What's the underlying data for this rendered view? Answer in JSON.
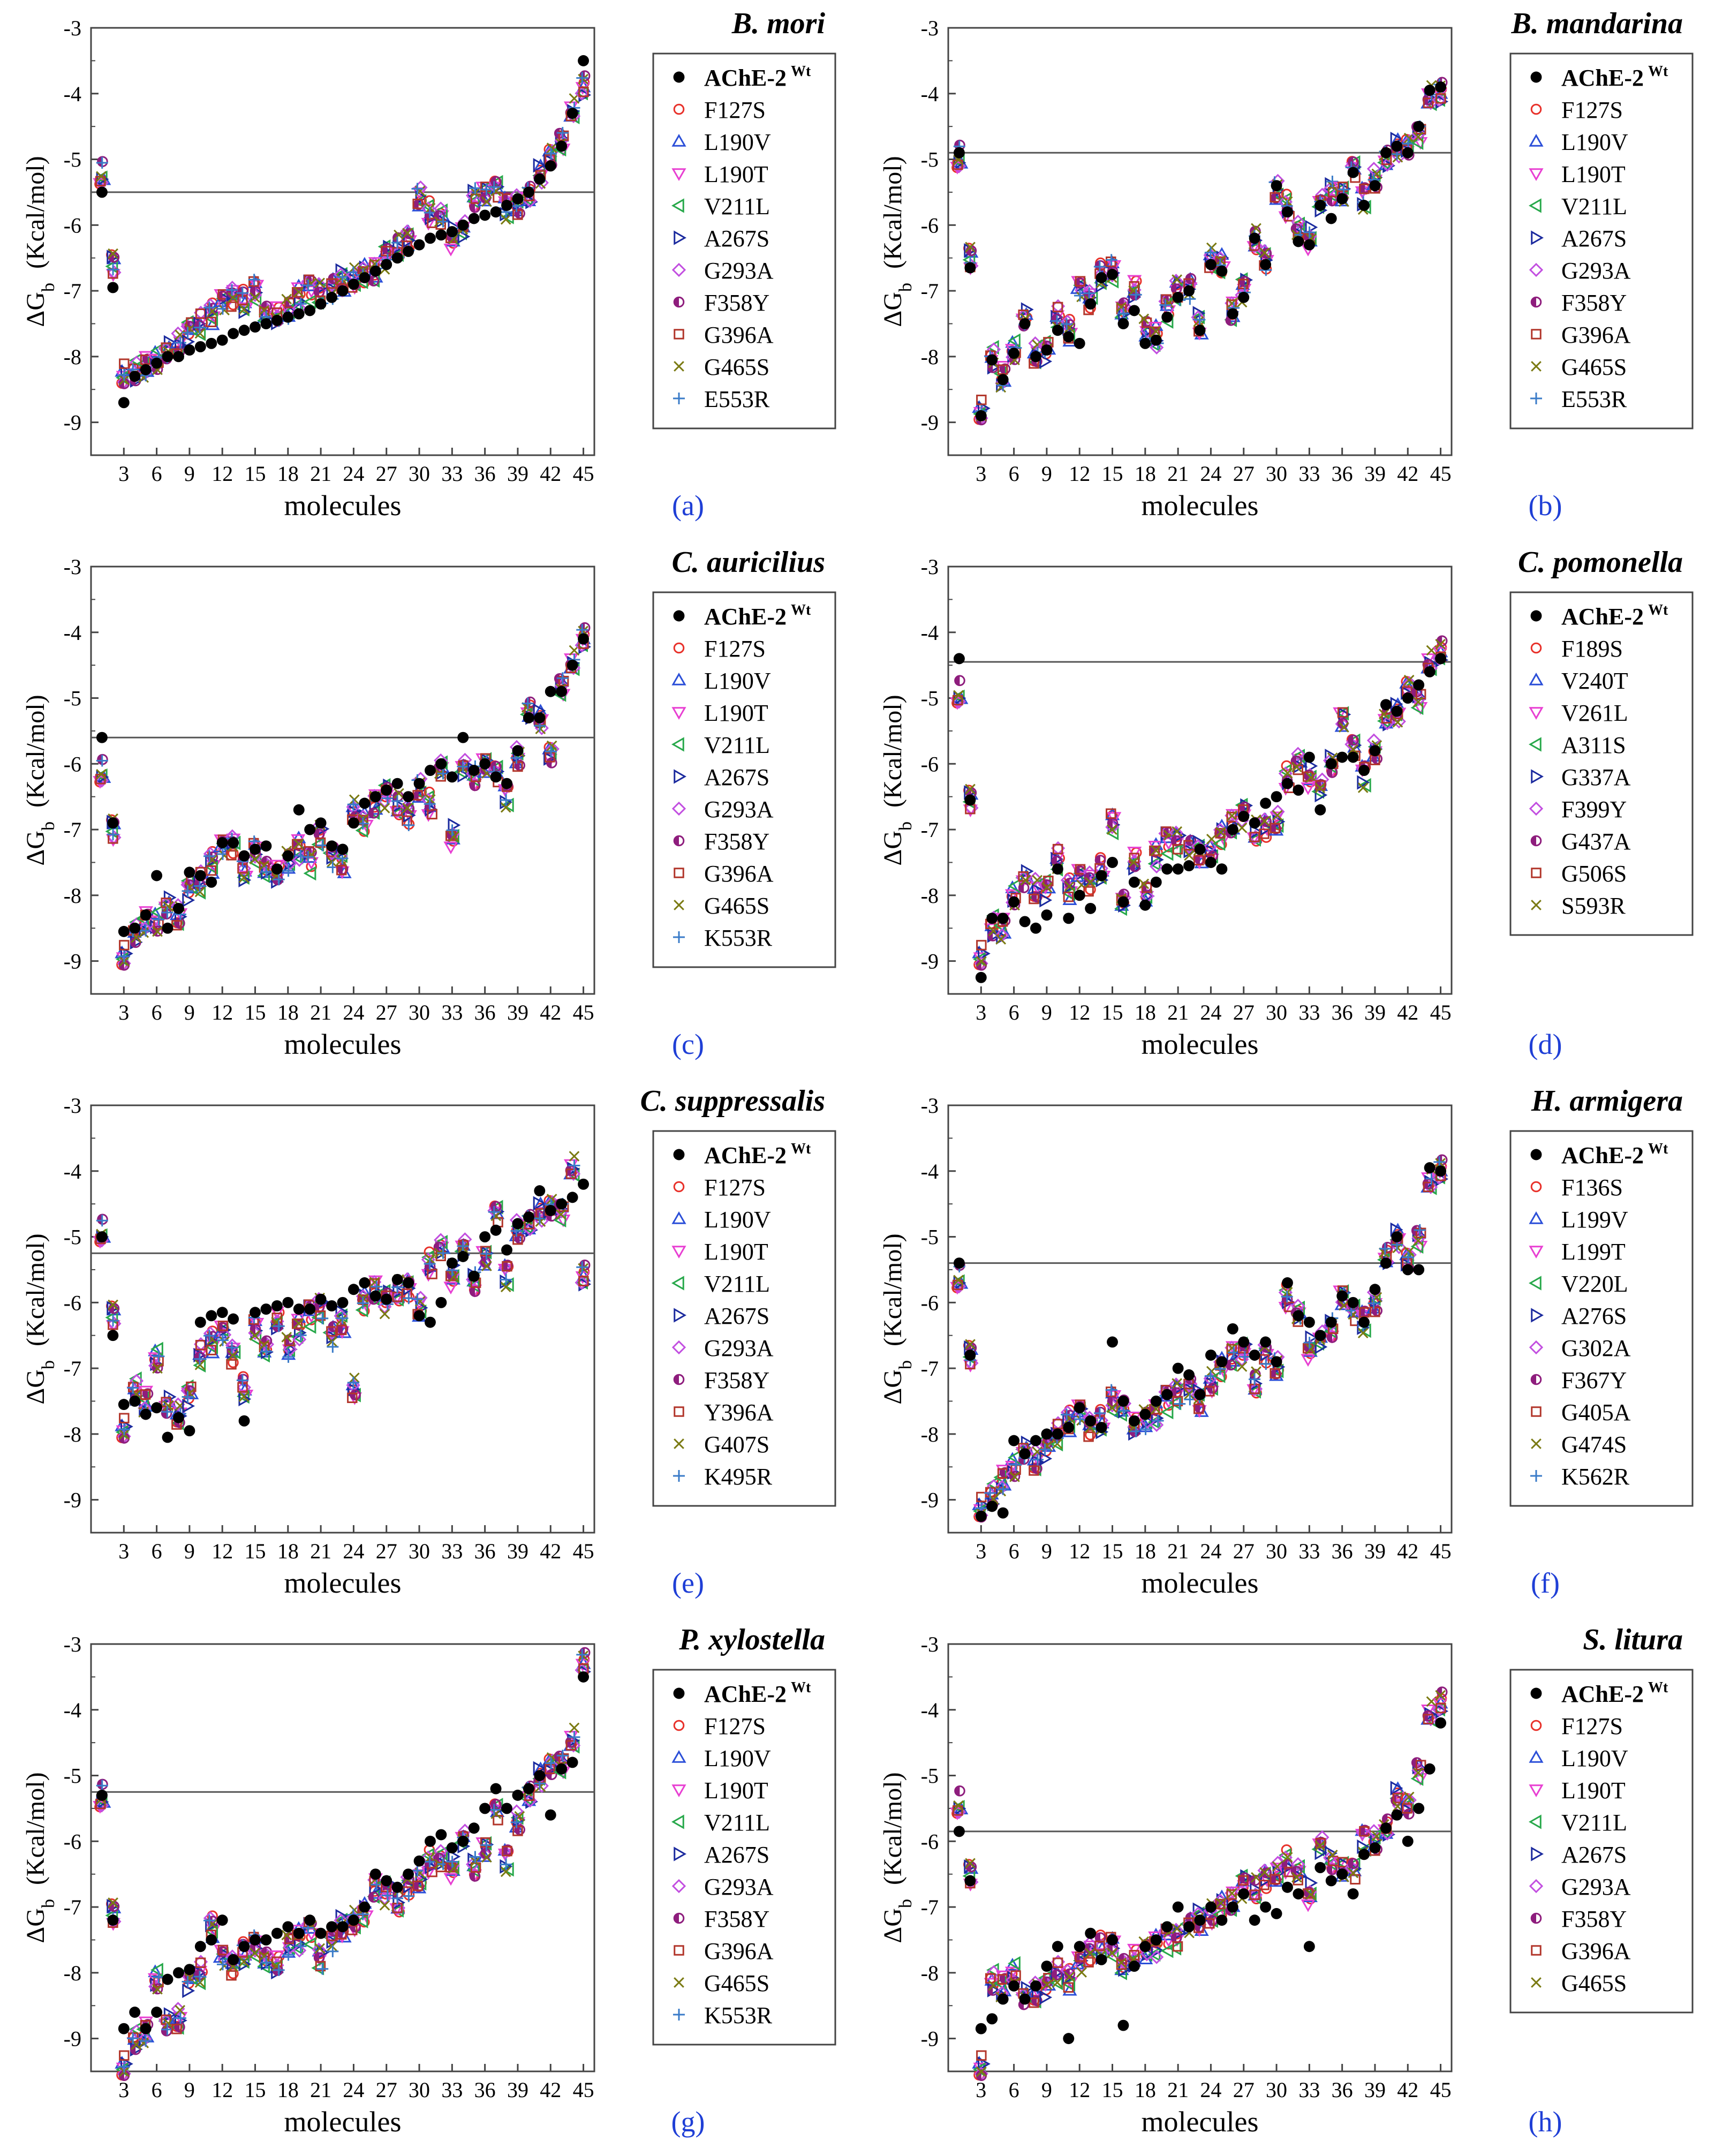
{
  "figure": {
    "x_label": "molecules",
    "y_label_prefix": "ΔG",
    "y_label_sub": "b",
    "y_label_suffix": "(Kcal/mol)"
  },
  "chart_data": [
    {
      "type": "scatter",
      "panel_label": "(a)",
      "title": "B. mori",
      "xlabel": "molecules",
      "ylabel": "ΔGb (Kcal/mol)",
      "xlim": [
        0,
        46
      ],
      "ylim": [
        -9.5,
        -3
      ],
      "xticks": [
        3,
        6,
        9,
        12,
        15,
        18,
        21,
        24,
        27,
        30,
        33,
        36,
        39,
        42,
        45
      ],
      "yticks": [
        -3,
        -4,
        -5,
        -6,
        -7,
        -8,
        -9
      ],
      "threshold": -5.5,
      "legend": [
        "AChE-2",
        "F127S",
        "L190V",
        "L190T",
        "V211L",
        "A267S",
        "G293A",
        "F358Y",
        "G396A",
        "G465S",
        "E553R"
      ],
      "legend_first_superscript": "Wt",
      "wt_values": [
        -5.5,
        -6.95,
        -8.7,
        -8.3,
        -8.2,
        -8.1,
        -8.0,
        -8.0,
        -7.9,
        -7.85,
        -7.8,
        -7.75,
        -7.65,
        -7.6,
        -7.55,
        -7.5,
        -7.45,
        -7.4,
        -7.35,
        -7.3,
        -7.2,
        -7.1,
        -7.0,
        -6.9,
        -6.8,
        -6.7,
        -6.6,
        -6.5,
        -6.4,
        -6.3,
        -6.2,
        -6.15,
        -6.1,
        -6.0,
        -5.9,
        -5.85,
        -5.8,
        -5.7,
        -5.6,
        -5.5,
        -5.3,
        -5.1,
        -4.8,
        -4.3,
        -3.5
      ],
      "mutant_series_mean": [
        -5.2,
        -6.6,
        -8.25,
        -8.2,
        -8.15,
        -8.05,
        -7.95,
        -7.8,
        -7.6,
        -7.5,
        -7.35,
        -7.2,
        -7.1,
        -7.15,
        -7.0,
        -7.35,
        -7.4,
        -7.3,
        -7.1,
        -7.0,
        -7.05,
        -6.95,
        -6.85,
        -6.8,
        -6.75,
        -6.7,
        -6.5,
        -6.3,
        -6.25,
        -5.6,
        -5.8,
        -5.9,
        -6.2,
        -6.0,
        -5.6,
        -5.5,
        -5.5,
        -5.75,
        -5.7,
        -5.55,
        -5.2,
        -5.0,
        -4.7,
        -4.2,
        -3.9
      ]
    },
    {
      "type": "scatter",
      "panel_label": "(b)",
      "title": "B. mandarina",
      "xlabel": "molecules",
      "ylabel": "ΔGb (Kcal/mol)",
      "xlim": [
        0,
        46
      ],
      "ylim": [
        -9.5,
        -3
      ],
      "xticks": [
        3,
        6,
        9,
        12,
        15,
        18,
        21,
        24,
        27,
        30,
        33,
        36,
        39,
        42,
        45
      ],
      "yticks": [
        -3,
        -4,
        -5,
        -6,
        -7,
        -8,
        -9
      ],
      "threshold": -4.9,
      "legend": [
        "AChE-2",
        "F127S",
        "L190V",
        "L190T",
        "V211L",
        "A267S",
        "G293A",
        "F358Y",
        "G396A",
        "G465S",
        "E553R"
      ],
      "legend_first_superscript": "Wt",
      "wt_values": [
        -4.9,
        -6.65,
        -8.9,
        -8.05,
        -8.35,
        -7.95,
        -7.5,
        -8.0,
        -7.9,
        -7.6,
        -7.7,
        -7.8,
        -7.2,
        -6.8,
        -6.75,
        -7.5,
        -7.3,
        -7.8,
        -7.75,
        -7.4,
        -7.1,
        -7.0,
        -7.6,
        -6.6,
        -6.7,
        -7.35,
        -7.1,
        -6.2,
        -6.6,
        -5.4,
        -5.8,
        -6.25,
        -6.3,
        -5.7,
        -5.9,
        -5.6,
        -5.2,
        -5.7,
        -5.4,
        -4.9,
        -4.8,
        -4.9,
        -4.5,
        -3.95,
        -3.9
      ],
      "mutant_series_mean": [
        -4.95,
        -6.5,
        -8.8,
        -8.0,
        -8.3,
        -7.9,
        -7.45,
        -7.95,
        -7.9,
        -7.4,
        -7.6,
        -7.0,
        -7.15,
        -6.75,
        -6.7,
        -7.3,
        -7.0,
        -7.6,
        -7.7,
        -7.3,
        -7.0,
        -6.95,
        -7.5,
        -6.5,
        -6.6,
        -7.3,
        -7.0,
        -6.2,
        -6.55,
        -5.5,
        -5.7,
        -6.1,
        -6.2,
        -5.6,
        -5.5,
        -5.5,
        -5.2,
        -5.6,
        -5.3,
        -5.0,
        -4.8,
        -4.85,
        -4.6,
        -4.0,
        -4.0
      ]
    },
    {
      "type": "scatter",
      "panel_label": "(c)",
      "title": "C. auricilius",
      "xlabel": "molecules",
      "ylabel": "ΔGb (Kcal/mol)",
      "xlim": [
        0,
        46
      ],
      "ylim": [
        -9.5,
        -3
      ],
      "xticks": [
        3,
        6,
        9,
        12,
        15,
        18,
        21,
        24,
        27,
        30,
        33,
        36,
        39,
        42,
        45
      ],
      "yticks": [
        -3,
        -4,
        -5,
        -6,
        -7,
        -8,
        -9
      ],
      "threshold": -5.6,
      "legend": [
        "AChE-2",
        "F127S",
        "L190V",
        "L190T",
        "V211L",
        "A267S",
        "G293A",
        "F358Y",
        "G396A",
        "G465S",
        "K553R"
      ],
      "legend_first_superscript": "Wt",
      "wt_values": [
        -5.6,
        -6.9,
        -8.55,
        -8.5,
        -8.3,
        -7.7,
        -8.5,
        -8.2,
        -7.65,
        -7.7,
        -7.8,
        -7.2,
        -7.2,
        -7.4,
        -7.3,
        -7.25,
        -7.6,
        -7.4,
        -6.7,
        -7.0,
        -6.9,
        -7.25,
        -7.3,
        -6.9,
        -6.6,
        -6.5,
        -6.4,
        -6.3,
        -6.5,
        -6.3,
        -6.1,
        -6.0,
        -6.2,
        -5.6,
        -6.1,
        -6.0,
        -6.2,
        -6.3,
        -5.8,
        -5.3,
        -5.3,
        -4.9,
        -4.9,
        -4.5,
        -4.1
      ],
      "mutant_series_mean": [
        -6.1,
        -7.0,
        -8.9,
        -8.55,
        -8.4,
        -8.4,
        -8.2,
        -8.3,
        -7.9,
        -7.8,
        -7.5,
        -7.3,
        -7.25,
        -7.6,
        -7.35,
        -7.6,
        -7.7,
        -7.5,
        -7.3,
        -7.5,
        -7.1,
        -7.4,
        -7.5,
        -6.7,
        -6.9,
        -6.6,
        -6.5,
        -6.6,
        -6.8,
        -6.4,
        -6.6,
        -6.1,
        -7.1,
        -6.0,
        -6.2,
        -6.0,
        -6.2,
        -6.5,
        -5.9,
        -5.2,
        -5.3,
        -5.9,
        -4.8,
        -4.4,
        -4.1
      ]
    },
    {
      "type": "scatter",
      "panel_label": "(d)",
      "title": "C. pomonella",
      "xlabel": "molecules",
      "ylabel": "ΔGb (Kcal/mol)",
      "xlim": [
        0,
        46
      ],
      "ylim": [
        -9.5,
        -3
      ],
      "xticks": [
        3,
        6,
        9,
        12,
        15,
        18,
        21,
        24,
        27,
        30,
        33,
        36,
        39,
        42,
        45
      ],
      "yticks": [
        -3,
        -4,
        -5,
        -6,
        -7,
        -8,
        -9
      ],
      "threshold": -4.45,
      "legend": [
        "AChE-2",
        "F189S",
        "V240T",
        "V261L",
        "A311S",
        "G337A",
        "F399Y",
        "G437A",
        "G506S",
        "S593R"
      ],
      "legend_first_superscript": "Wt",
      "wt_values": [
        -4.4,
        -6.55,
        -9.25,
        -8.35,
        -8.35,
        -8.1,
        -8.4,
        -8.5,
        -8.3,
        -7.6,
        -8.35,
        -8.0,
        -8.2,
        -7.7,
        -7.5,
        -8.1,
        -7.8,
        -8.15,
        -7.8,
        -7.6,
        -7.6,
        -7.55,
        -7.3,
        -7.5,
        -7.6,
        -7.0,
        -6.8,
        -6.9,
        -6.6,
        -6.5,
        -6.3,
        -6.4,
        -5.9,
        -6.7,
        -6.0,
        -5.9,
        -5.9,
        -6.1,
        -5.8,
        -5.1,
        -5.2,
        -5.0,
        -4.8,
        -4.6,
        -4.4
      ],
      "mutant_series_mean": [
        -4.9,
        -6.55,
        -8.9,
        -8.45,
        -8.5,
        -8.0,
        -7.8,
        -7.9,
        -7.9,
        -7.45,
        -7.9,
        -7.75,
        -7.8,
        -7.6,
        -6.9,
        -8.1,
        -7.5,
        -8.0,
        -7.4,
        -7.2,
        -7.2,
        -7.3,
        -7.35,
        -7.3,
        -7.1,
        -6.9,
        -6.8,
        -7.0,
        -7.0,
        -6.9,
        -6.2,
        -6.0,
        -6.2,
        -6.3,
        -6.0,
        -5.3,
        -5.8,
        -6.2,
        -5.8,
        -5.3,
        -5.2,
        -4.9,
        -5.0,
        -4.4,
        -4.3
      ]
    },
    {
      "type": "scatter",
      "panel_label": "(e)",
      "title": "C. suppressalis",
      "xlabel": "molecules",
      "ylabel": "ΔGb (Kcal/mol)",
      "xlim": [
        0,
        46
      ],
      "ylim": [
        -9.5,
        -3
      ],
      "xticks": [
        3,
        6,
        9,
        12,
        15,
        18,
        21,
        24,
        27,
        30,
        33,
        36,
        39,
        42,
        45
      ],
      "yticks": [
        -3,
        -4,
        -5,
        -6,
        -7,
        -8,
        -9
      ],
      "threshold": -5.25,
      "legend": [
        "AChE-2",
        "F127S",
        "L190V",
        "L190T",
        "V211L",
        "A267S",
        "G293A",
        "F358Y",
        "Y396A",
        "G407S",
        "K495R"
      ],
      "legend_first_superscript": "Wt",
      "wt_values": [
        -5.0,
        -6.5,
        -7.55,
        -7.5,
        -7.7,
        -7.6,
        -8.05,
        -7.75,
        -7.95,
        -6.3,
        -6.2,
        -6.15,
        -6.25,
        -7.8,
        -6.15,
        -6.1,
        -6.05,
        -6.0,
        -6.1,
        -6.1,
        -5.95,
        -6.05,
        -6.0,
        -5.8,
        -5.7,
        -5.9,
        -5.95,
        -5.65,
        -5.7,
        -6.2,
        -6.3,
        -6.0,
        -5.4,
        -5.3,
        -5.6,
        -5.0,
        -4.9,
        -5.2,
        -4.8,
        -4.7,
        -4.3,
        -4.6,
        -4.5,
        -4.4,
        -4.2
      ],
      "mutant_series_mean": [
        -4.9,
        -6.2,
        -7.9,
        -7.3,
        -7.5,
        -6.85,
        -7.6,
        -7.7,
        -7.4,
        -6.8,
        -6.6,
        -6.5,
        -6.8,
        -7.3,
        -6.4,
        -6.7,
        -6.3,
        -6.7,
        -6.4,
        -6.2,
        -6.1,
        -6.5,
        -6.3,
        -7.3,
        -6.0,
        -5.8,
        -6.0,
        -5.8,
        -5.8,
        -6.1,
        -5.4,
        -5.2,
        -5.6,
        -5.1,
        -5.7,
        -5.3,
        -4.7,
        -5.6,
        -4.9,
        -4.8,
        -4.6,
        -4.6,
        -4.6,
        -3.9,
        -5.6
      ]
    },
    {
      "type": "scatter",
      "panel_label": "(f)",
      "title": "H. armigera",
      "xlabel": "molecules",
      "ylabel": "ΔGb (Kcal/mol)",
      "xlim": [
        0,
        46
      ],
      "ylim": [
        -9.5,
        -3
      ],
      "xticks": [
        3,
        6,
        9,
        12,
        15,
        18,
        21,
        24,
        27,
        30,
        33,
        36,
        39,
        42,
        45
      ],
      "yticks": [
        -3,
        -4,
        -5,
        -6,
        -7,
        -8,
        -9
      ],
      "threshold": -5.4,
      "legend": [
        "AChE-2",
        "F136S",
        "L199V",
        "L199T",
        "V220L",
        "A276S",
        "G302A",
        "F367Y",
        "G405A",
        "G474S",
        "K562R"
      ],
      "legend_first_superscript": "Wt",
      "wt_values": [
        -5.4,
        -6.8,
        -9.25,
        -9.1,
        -9.2,
        -8.1,
        -8.3,
        -8.1,
        -8.0,
        -8.0,
        -7.9,
        -7.6,
        -7.8,
        -7.9,
        -6.6,
        -7.5,
        -7.8,
        -7.7,
        -7.5,
        -7.4,
        -7.0,
        -7.1,
        -7.4,
        -6.8,
        -6.9,
        -6.4,
        -6.6,
        -6.8,
        -6.6,
        -6.9,
        -5.7,
        -6.2,
        -6.3,
        -6.5,
        -6.3,
        -5.9,
        -6.0,
        -6.3,
        -5.8,
        -5.4,
        -5.0,
        -5.5,
        -5.5,
        -3.95,
        -4.0
      ],
      "mutant_series_mean": [
        -5.6,
        -6.8,
        -9.1,
        -8.9,
        -8.7,
        -8.5,
        -8.3,
        -8.4,
        -8.2,
        -8.0,
        -7.8,
        -7.7,
        -7.9,
        -7.8,
        -7.5,
        -7.6,
        -7.9,
        -7.8,
        -7.7,
        -7.5,
        -7.4,
        -7.3,
        -7.5,
        -7.2,
        -7.0,
        -6.8,
        -6.8,
        -7.2,
        -6.8,
        -7.0,
        -5.9,
        -6.2,
        -6.7,
        -6.5,
        -6.4,
        -5.9,
        -6.2,
        -6.3,
        -6.0,
        -5.3,
        -5.0,
        -5.4,
        -5.0,
        -4.1,
        -4.0
      ]
    },
    {
      "type": "scatter",
      "panel_label": "(g)",
      "title": "P. xylostella",
      "xlabel": "molecules",
      "ylabel": "ΔGb (Kcal/mol)",
      "xlim": [
        0,
        46
      ],
      "ylim": [
        -9.5,
        -3
      ],
      "xticks": [
        3,
        6,
        9,
        12,
        15,
        18,
        21,
        24,
        27,
        30,
        33,
        36,
        39,
        42,
        45
      ],
      "yticks": [
        -3,
        -4,
        -5,
        -6,
        -7,
        -8,
        -9
      ],
      "threshold": -5.25,
      "legend": [
        "AChE-2",
        "F127S",
        "L190V",
        "L190T",
        "V211L",
        "A267S",
        "G293A",
        "F358Y",
        "G396A",
        "G465S",
        "K553R"
      ],
      "legend_first_superscript": "Wt",
      "wt_values": [
        -5.3,
        -7.2,
        -8.85,
        -8.6,
        -8.85,
        -8.6,
        -8.1,
        -8.0,
        -7.95,
        -7.6,
        -7.5,
        -7.2,
        -7.8,
        -7.6,
        -7.5,
        -7.5,
        -7.4,
        -7.3,
        -7.4,
        -7.2,
        -7.4,
        -7.3,
        -7.3,
        -7.2,
        -7.0,
        -6.5,
        -6.6,
        -6.7,
        -6.5,
        -6.3,
        -6.0,
        -5.9,
        -6.1,
        -6.0,
        -5.8,
        -5.5,
        -5.2,
        -5.5,
        -5.3,
        -5.2,
        -5.0,
        -5.6,
        -4.9,
        -4.8,
        -3.5
      ],
      "mutant_series_mean": [
        -5.3,
        -7.1,
        -9.4,
        -9.0,
        -8.9,
        -8.1,
        -8.8,
        -8.7,
        -8.1,
        -8.0,
        -7.3,
        -7.8,
        -7.9,
        -7.7,
        -7.6,
        -7.8,
        -7.9,
        -7.6,
        -7.5,
        -7.4,
        -7.8,
        -7.5,
        -7.3,
        -7.2,
        -7.1,
        -6.7,
        -6.8,
        -6.9,
        -6.7,
        -6.6,
        -6.3,
        -6.3,
        -6.4,
        -5.9,
        -6.4,
        -6.1,
        -5.6,
        -6.3,
        -5.7,
        -5.3,
        -5.0,
        -4.9,
        -4.8,
        -4.4,
        -3.3
      ]
    },
    {
      "type": "scatter",
      "panel_label": "(h)",
      "title": "S. litura",
      "xlabel": "molecules",
      "ylabel": "ΔGb (Kcal/mol)",
      "xlim": [
        0,
        46
      ],
      "ylim": [
        -9.5,
        -3
      ],
      "xticks": [
        3,
        6,
        9,
        12,
        15,
        18,
        21,
        24,
        27,
        30,
        33,
        36,
        39,
        42,
        45
      ],
      "yticks": [
        -3,
        -4,
        -5,
        -6,
        -7,
        -8,
        -9
      ],
      "threshold": -5.85,
      "legend": [
        "AChE-2",
        "F127S",
        "L190V",
        "L190T",
        "V211L",
        "A267S",
        "G293A",
        "F358Y",
        "G396A",
        "G465S"
      ],
      "legend_first_superscript": "Wt",
      "wt_values": [
        -5.85,
        -6.6,
        -8.85,
        -8.7,
        -8.4,
        -8.2,
        -8.4,
        -8.2,
        -7.9,
        -7.6,
        -9.0,
        -7.6,
        -7.4,
        -7.8,
        -7.5,
        -8.8,
        -7.9,
        -7.6,
        -7.5,
        -7.3,
        -7.0,
        -7.3,
        -7.2,
        -7.0,
        -7.2,
        -7.0,
        -6.8,
        -7.2,
        -7.0,
        -7.1,
        -6.7,
        -6.8,
        -7.6,
        -6.4,
        -6.6,
        -6.5,
        -6.8,
        -6.2,
        -6.1,
        -5.8,
        -5.6,
        -6.0,
        -5.5,
        -4.9,
        -4.2
      ],
      "mutant_series_mean": [
        -5.4,
        -6.5,
        -9.4,
        -8.1,
        -8.2,
        -8.0,
        -8.4,
        -8.3,
        -8.2,
        -8.0,
        -8.1,
        -7.9,
        -7.7,
        -7.6,
        -7.6,
        -7.9,
        -7.8,
        -7.7,
        -7.6,
        -7.5,
        -7.5,
        -7.3,
        -7.2,
        -7.1,
        -7.0,
        -6.9,
        -6.7,
        -6.7,
        -6.6,
        -6.5,
        -6.3,
        -6.5,
        -6.8,
        -6.0,
        -6.3,
        -6.4,
        -6.5,
        -6.0,
        -6.0,
        -5.8,
        -5.3,
        -5.5,
        -4.9,
        -4.0,
        -3.9
      ]
    }
  ],
  "series_styles": {
    "wt_color": "#000000",
    "mutant_colors": [
      "#e8312a",
      "#2b4fd8",
      "#e83fd2",
      "#27a84a",
      "#1b2a9e",
      "#c24ee0",
      "#8e1d7d",
      "#b2362b",
      "#7a7a12",
      "#3a7bc8"
    ]
  }
}
